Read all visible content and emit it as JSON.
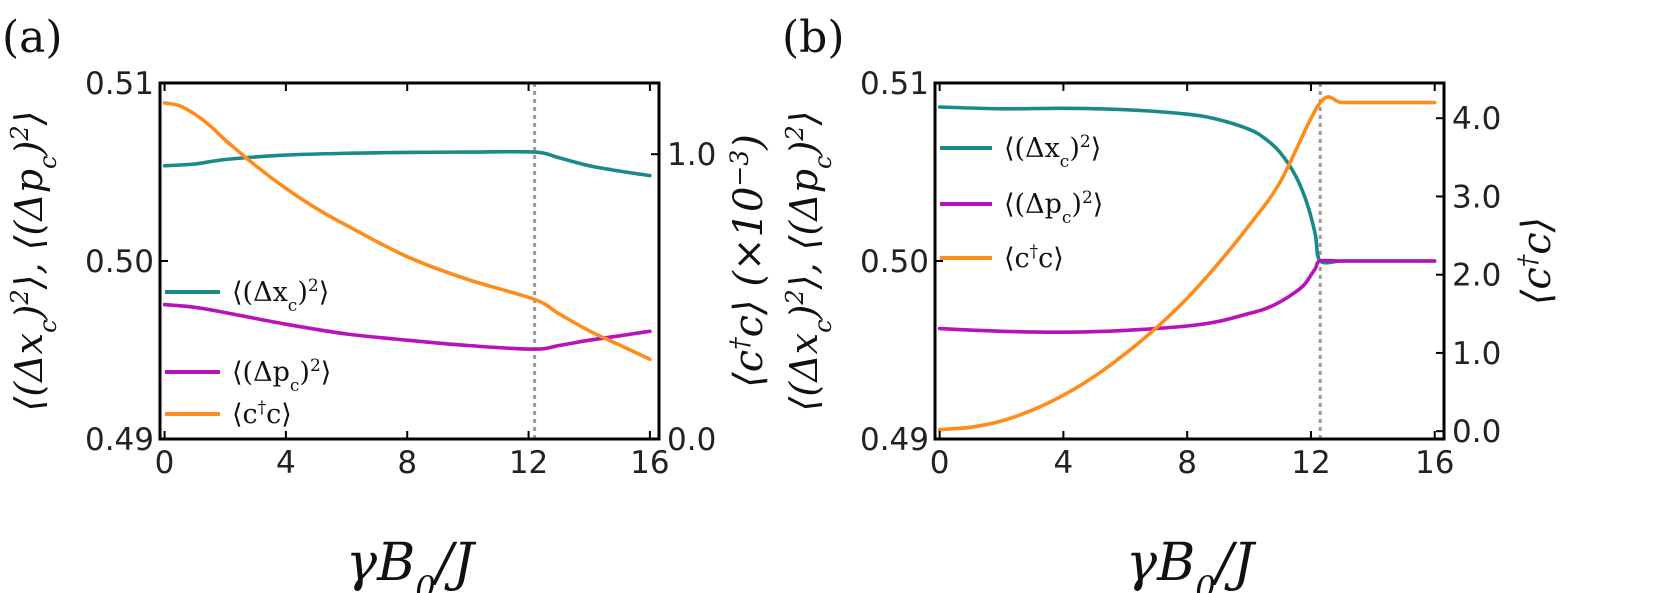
{
  "chart_data": [
    {
      "type": "line",
      "panel_label": "(a)",
      "xlabel": "γB₀/J",
      "ylabel_left": "⟨(Δx_c)²⟩, ⟨(Δp_c)²⟩",
      "ylabel_right": "⟨c†c⟩ (×10⁻³)",
      "x_ticks": [
        0,
        4,
        8,
        12,
        16
      ],
      "x_tick_labels": [
        "0",
        "4",
        "8",
        "12",
        "16"
      ],
      "xlim": [
        -0.15,
        16.3
      ],
      "ylim_left": [
        0.49,
        0.51
      ],
      "y_left_ticks": [
        0.49,
        0.5,
        0.51
      ],
      "y_left_tick_labels": [
        "0.49",
        "0.50",
        "0.51"
      ],
      "ylim_right": [
        0.0,
        1.25
      ],
      "y_right_ticks": [
        0.0,
        1.0
      ],
      "y_right_tick_labels": [
        "0.0",
        "1.0"
      ],
      "vline_x": 12.2,
      "legend_position": "center-left",
      "series": [
        {
          "name": "⟨(Δx_c)²⟩",
          "legend": "⟨(Δx_c)²⟩",
          "color": "#1a8a88",
          "axis": "left",
          "x": [
            0,
            1,
            2,
            4,
            6,
            8,
            10,
            12.2,
            13,
            14,
            15,
            16
          ],
          "y": [
            0.50535,
            0.50545,
            0.5057,
            0.50595,
            0.50605,
            0.5061,
            0.50612,
            0.50612,
            0.5058,
            0.50535,
            0.50505,
            0.5048
          ]
        },
        {
          "name": "⟨(Δp_c)²⟩",
          "legend": "⟨(Δp_c)²⟩",
          "color": "#b812b8",
          "axis": "left",
          "x": [
            0,
            1,
            2,
            4,
            6,
            8,
            10,
            12.2,
            13,
            14,
            15,
            16
          ],
          "y": [
            0.49755,
            0.4974,
            0.4971,
            0.49645,
            0.4959,
            0.49555,
            0.49525,
            0.49505,
            0.49525,
            0.49555,
            0.4958,
            0.49605
          ]
        },
        {
          "name": "⟨c†c⟩",
          "legend": "⟨c†c⟩",
          "color": "#ff8c1a",
          "axis": "right",
          "x": [
            0,
            0.5,
            1,
            1.5,
            2,
            3,
            4,
            5,
            6,
            8,
            10,
            12.2,
            13,
            14,
            15,
            16
          ],
          "y": [
            1.18,
            1.17,
            1.14,
            1.1,
            1.05,
            0.96,
            0.88,
            0.81,
            0.75,
            0.64,
            0.56,
            0.49,
            0.44,
            0.38,
            0.33,
            0.28
          ]
        }
      ]
    },
    {
      "type": "line",
      "panel_label": "(b)",
      "xlabel": "γB₀/J",
      "ylabel_left": "⟨(Δx_c)²⟩, ⟨(Δp_c)²⟩",
      "ylabel_right": "⟨c†c⟩",
      "x_ticks": [
        0,
        4,
        8,
        12,
        16
      ],
      "x_tick_labels": [
        "0",
        "4",
        "8",
        "12",
        "16"
      ],
      "xlim": [
        -0.15,
        16.3
      ],
      "ylim_left": [
        0.49,
        0.51
      ],
      "y_left_ticks": [
        0.49,
        0.5,
        0.51
      ],
      "y_left_tick_labels": [
        "0.49",
        "0.50",
        "0.51"
      ],
      "ylim_right": [
        -0.1,
        4.45
      ],
      "y_right_ticks": [
        0.0,
        1.0,
        2.0,
        3.0,
        4.0
      ],
      "y_right_tick_labels": [
        "0.0",
        "1.0",
        "2.0",
        "3.0",
        "4.0"
      ],
      "vline_x": 12.3,
      "legend_position": "upper-left",
      "series": [
        {
          "name": "⟨(Δx_c)²⟩",
          "legend": "⟨(Δx_c)²⟩",
          "color": "#1a8a88",
          "axis": "left",
          "x": [
            0,
            2,
            4,
            6,
            8,
            9,
            10,
            10.5,
            11,
            11.5,
            11.8,
            12.0,
            12.15,
            12.3,
            13,
            14,
            15,
            16
          ],
          "y": [
            0.50865,
            0.50855,
            0.50858,
            0.5085,
            0.50825,
            0.50795,
            0.5074,
            0.5069,
            0.5061,
            0.5048,
            0.5036,
            0.5025,
            0.5014,
            0.5,
            0.5,
            0.5,
            0.5,
            0.5
          ]
        },
        {
          "name": "⟨(Δp_c)²⟩",
          "legend": "⟨(Δp_c)²⟩",
          "color": "#b812b8",
          "axis": "left",
          "x": [
            0,
            2,
            4,
            6,
            8,
            9,
            10,
            10.5,
            11,
            11.5,
            11.8,
            12.0,
            12.15,
            12.3,
            13,
            14,
            15,
            16
          ],
          "y": [
            0.4962,
            0.49605,
            0.496,
            0.4961,
            0.49635,
            0.4966,
            0.49705,
            0.4973,
            0.4977,
            0.49825,
            0.4987,
            0.4992,
            0.4996,
            0.5,
            0.5,
            0.5,
            0.5,
            0.5
          ]
        },
        {
          "name": "⟨c†c⟩",
          "legend": "⟨c†c⟩",
          "color": "#ff8c1a",
          "axis": "right",
          "x": [
            0,
            1,
            2,
            3,
            4,
            5,
            6,
            7,
            8,
            9,
            10,
            11,
            12.3,
            13,
            14,
            15,
            16
          ],
          "y": [
            0.02,
            0.05,
            0.13,
            0.27,
            0.46,
            0.7,
            0.99,
            1.32,
            1.7,
            2.14,
            2.63,
            3.18,
            4.2,
            4.2,
            4.2,
            4.2,
            4.2
          ]
        }
      ]
    }
  ]
}
